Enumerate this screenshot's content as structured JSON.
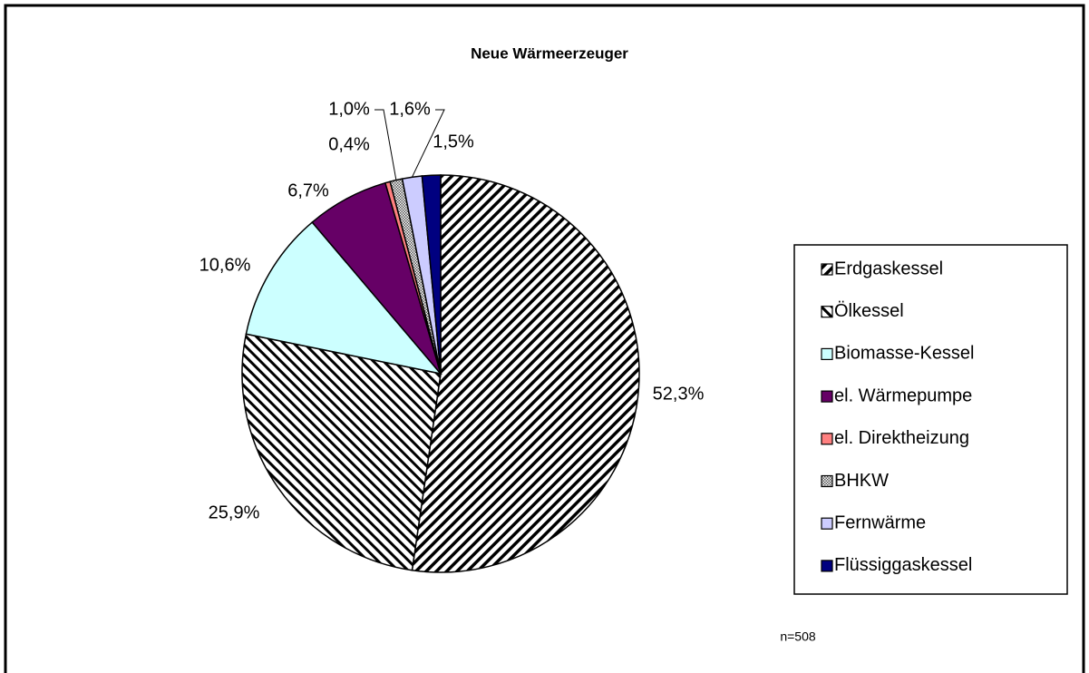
{
  "chart_data": {
    "type": "pie",
    "title": "Neue Wärmeerzeuger",
    "note": "n=508",
    "categories": [
      "Erdgaskessel",
      "Ölkessel",
      "Biomasse-Kessel",
      "el. Wärmepumpe",
      "el. Direktheizung",
      "BHKW",
      "Fernwärme",
      "Flüssiggaskessel"
    ],
    "values": [
      52.3,
      25.9,
      10.6,
      6.7,
      0.4,
      1.0,
      1.6,
      1.5
    ],
    "value_labels": [
      "52,3%",
      "25,9%",
      "10,6%",
      "6,7%",
      "0,4%",
      "1,0%",
      "1,6%",
      "1,5%"
    ],
    "colors": [
      "#ffffff",
      "#ffffff",
      "#ccffff",
      "#660066",
      "#ff8080",
      "#ffffff",
      "#ccccff",
      "#000080"
    ],
    "patterns": [
      "diagonal-up",
      "diagonal-down",
      null,
      null,
      null,
      "dots",
      null,
      null
    ],
    "legend": "right"
  }
}
